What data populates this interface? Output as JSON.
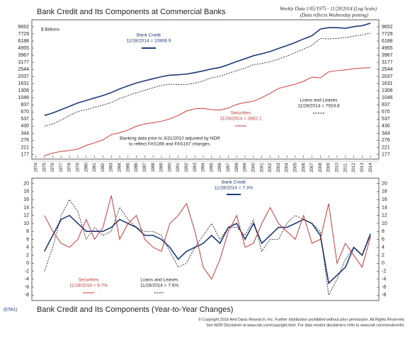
{
  "chart_data": [
    {
      "type": "line",
      "title": "Bank Credit and Its Components at Commercial Banks",
      "subtitle": "Weekly Data 1/05/1975 - 11/28/2014 (Log Scale)",
      "note": "(Data reflects Wednesday posting)",
      "ylabel": "$ Billions",
      "annotation": [
        "Banking data prior to 3/31/2010 adjusted by NDR",
        "to reflect FAS166 and FAS167 changes."
      ],
      "log_scale": true,
      "xlim": [
        1973.5,
        2015
      ],
      "xticks": [
        1974,
        1975,
        1976,
        1977,
        1978,
        1979,
        1980,
        1981,
        1982,
        1983,
        1984,
        1985,
        1986,
        1987,
        1988,
        1989,
        1990,
        1991,
        1992,
        1993,
        1994,
        1995,
        1996,
        1997,
        1998,
        1999,
        2000,
        2001,
        2002,
        2003,
        2004,
        2005,
        2006,
        2007,
        2008,
        2009,
        2010,
        2011,
        2012,
        2013,
        2014
      ],
      "ylim": [
        160,
        11500
      ],
      "yticks": [
        177,
        221,
        276,
        344,
        430,
        537,
        670,
        837,
        1046,
        1306,
        1631,
        2037,
        2544,
        3177,
        3967,
        4955,
        6188,
        7729,
        9652
      ],
      "x": [
        1975,
        1976,
        1977,
        1978,
        1979,
        1980,
        1981,
        1982,
        1983,
        1984,
        1985,
        1986,
        1987,
        1988,
        1989,
        1990,
        1991,
        1992,
        1993,
        1994,
        1995,
        1996,
        1997,
        1998,
        1999,
        2000,
        2001,
        2002,
        2003,
        2004,
        2005,
        2006,
        2007,
        2008,
        2009,
        2010,
        2011,
        2012,
        2013,
        2014
      ],
      "series": [
        {
          "name": "Bank Credit",
          "latest": "11/28/2014 = 10806.9",
          "color": "#1f3a7a",
          "width": 1.6,
          "dashed": false,
          "values": [
            600,
            650,
            720,
            800,
            890,
            960,
            1040,
            1120,
            1230,
            1380,
            1520,
            1660,
            1780,
            1900,
            2020,
            2120,
            2150,
            2200,
            2300,
            2430,
            2580,
            2700,
            2950,
            3250,
            3550,
            3900,
            4150,
            4450,
            4900,
            5350,
            5900,
            6600,
            7300,
            9000,
            9400,
            9400,
            9200,
            9700,
            10000,
            10806.9
          ]
        },
        {
          "name": "Loans and Leases",
          "latest": "11/28/2014 = 7924.8",
          "color": "#111111",
          "width": 0.8,
          "dashed": true,
          "values": [
            430,
            460,
            520,
            600,
            680,
            720,
            780,
            830,
            900,
            1020,
            1120,
            1220,
            1320,
            1430,
            1540,
            1600,
            1580,
            1580,
            1650,
            1780,
            1950,
            2050,
            2250,
            2450,
            2650,
            2950,
            3050,
            3250,
            3500,
            3850,
            4300,
            4800,
            5400,
            6700,
            6600,
            6700,
            6900,
            7200,
            7500,
            7924.8
          ]
        },
        {
          "name": "Securities",
          "latest": "11/28/2014 = 2682.1",
          "color": "#d23a3a",
          "width": 1,
          "dashed": false,
          "values": [
            170,
            185,
            195,
            200,
            210,
            235,
            255,
            280,
            330,
            350,
            380,
            430,
            460,
            480,
            500,
            540,
            600,
            690,
            740,
            750,
            720,
            710,
            760,
            850,
            900,
            940,
            1050,
            1200,
            1400,
            1500,
            1600,
            1750,
            2000,
            1950,
            2350,
            2450,
            2500,
            2600,
            2650,
            2682.1
          ]
        }
      ]
    },
    {
      "type": "line",
      "title": "Bank Credit and Its Components (Year-to-Year Changes)",
      "code": "(E581)",
      "footer": [
        "© Copyright 2014 Ned Davis Research, Inc. Further distribution prohibited without prior permission. All Rights Reserved.",
        "See NDR Disclaimer at www.ndr.com/copyright.html. For data vendor disclaimers refer to www.ndr.com/vendorinfo/."
      ],
      "log_scale": false,
      "xlim": [
        1973.5,
        2015
      ],
      "ylim": [
        -9,
        21
      ],
      "yticks": [
        -8,
        -6,
        -4,
        -2,
        0,
        2,
        4,
        6,
        8,
        10,
        12,
        14,
        16,
        18,
        20
      ],
      "x": [
        1975,
        1976,
        1977,
        1978,
        1979,
        1980,
        1981,
        1982,
        1983,
        1984,
        1985,
        1986,
        1987,
        1988,
        1989,
        1990,
        1991,
        1992,
        1993,
        1994,
        1995,
        1996,
        1997,
        1998,
        1999,
        2000,
        2001,
        2002,
        2003,
        2004,
        2005,
        2006,
        2007,
        2008,
        2009,
        2010,
        2011,
        2012,
        2013,
        2014
      ],
      "series": [
        {
          "name": "Bank Credit",
          "latest": "11/28/2014 = 7.3%",
          "color": "#1f3a7a",
          "width": 1.6,
          "dashed": false,
          "values": [
            3,
            7,
            11,
            12,
            10,
            8,
            8,
            8,
            9,
            11,
            10,
            9,
            7,
            7,
            6,
            4,
            1,
            3,
            4,
            5,
            7,
            5,
            9,
            10,
            6,
            10,
            5,
            7,
            9,
            9,
            10,
            11,
            10,
            7,
            -5,
            -3,
            -1,
            4,
            2,
            7.3
          ]
        },
        {
          "name": "Loans and Leases",
          "latest": "11/28/2014 = 7.6%",
          "color": "#111111",
          "width": 0.8,
          "dashed": true,
          "values": [
            -2,
            4,
            12,
            16,
            13,
            6,
            9,
            7,
            8,
            14,
            11,
            9,
            8,
            8,
            7,
            3,
            -1,
            0,
            4,
            7,
            10,
            6,
            9,
            9,
            7,
            11,
            3,
            6,
            6,
            10,
            12,
            11,
            10,
            8,
            -8,
            -4,
            1,
            4,
            2,
            7.6
          ]
        },
        {
          "name": "Securities",
          "latest": "11/28/2014 = 6.7%",
          "color": "#d23a3a",
          "width": 1,
          "dashed": false,
          "values": [
            12,
            8,
            5,
            4,
            6,
            11,
            6,
            9,
            17,
            6,
            10,
            12,
            6,
            4,
            3,
            10,
            12,
            15,
            8,
            -1,
            -4,
            1,
            8,
            12,
            4,
            5,
            10,
            14,
            10,
            8,
            6,
            12,
            5,
            6,
            15,
            0,
            5,
            2,
            -1,
            6.7
          ]
        }
      ]
    }
  ]
}
